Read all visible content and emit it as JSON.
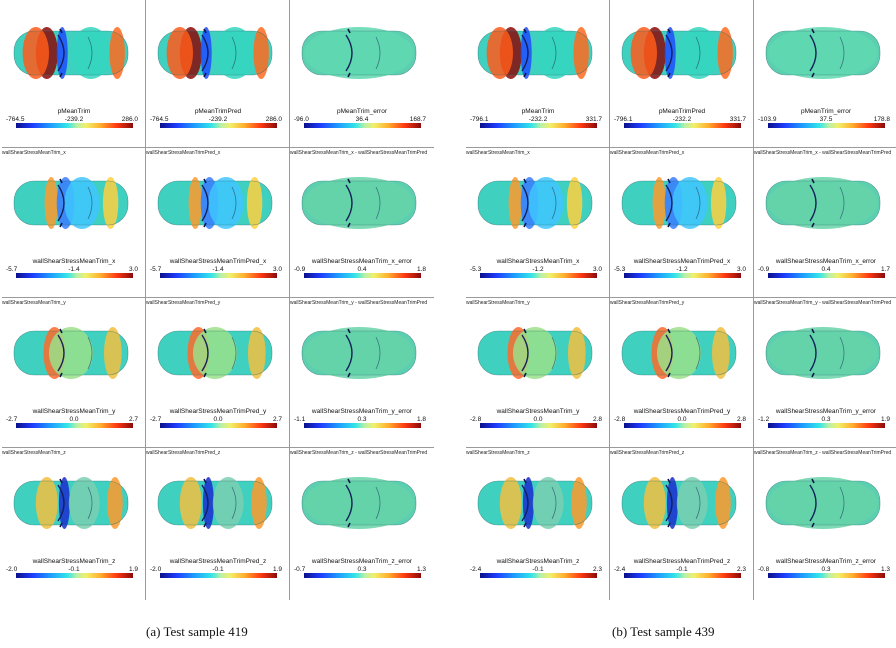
{
  "captions": [
    "(a) Test sample 419",
    "(b) Test sample 439"
  ],
  "colormap": [
    "#0a0f8a",
    "#1f3cff",
    "#1ea0ff",
    "#34e6e6",
    "#b8f0a8",
    "#f2f06a",
    "#ffb02e",
    "#ff3a12",
    "#8a0a0a"
  ],
  "panels": [
    {
      "rows": [
        {
          "fields": [
            "",
            "",
            ""
          ],
          "bars": [
            {
              "title": "pMeanTrim",
              "min": "-764.5",
              "mid": "-239.2",
              "max": "286.0"
            },
            {
              "title": "pMeanTrimPred",
              "min": "-764.5",
              "mid": "-239.2",
              "max": "286.0"
            },
            {
              "title": "pMeanTrim_error",
              "min": "-96.0",
              "mid": "36.4",
              "max": "168.7"
            }
          ]
        },
        {
          "fields": [
            "wallShearStressMeanTrim_x",
            "wallShearStressMeanTrimPred_x",
            "wallShearStressMeanTrim_x - wallShearStressMeanTrimPred"
          ],
          "bars": [
            {
              "title": "wallShearStressMeanTrim_x",
              "min": "-5.7",
              "mid": "-1.4",
              "max": "3.0"
            },
            {
              "title": "wallShearStressMeanTrimPred_x",
              "min": "-5.7",
              "mid": "-1.4",
              "max": "3.0"
            },
            {
              "title": "wallShearStressMeanTrim_x_error",
              "min": "-0.9",
              "mid": "0.4",
              "max": "1.8"
            }
          ]
        },
        {
          "fields": [
            "wallShearStressMeanTrim_y",
            "wallShearStressMeanTrimPred_y",
            "wallShearStressMeanTrim_y - wallShearStressMeanTrimPred"
          ],
          "bars": [
            {
              "title": "wallShearStressMeanTrim_y",
              "min": "-2.7",
              "mid": "0.0",
              "max": "2.7"
            },
            {
              "title": "wallShearStressMeanTrimPred_y",
              "min": "-2.7",
              "mid": "0.0",
              "max": "2.7"
            },
            {
              "title": "wallShearStressMeanTrim_y_error",
              "min": "-1.1",
              "mid": "0.3",
              "max": "1.8"
            }
          ]
        },
        {
          "fields": [
            "wallShearStressMeanTrim_z",
            "wallShearStressMeanTrimPred_z",
            "wallShearStressMeanTrim_z - wallShearStressMeanTrimPred"
          ],
          "bars": [
            {
              "title": "wallShearStressMeanTrim_z",
              "min": "-2.0",
              "mid": "-0.1",
              "max": "1.9"
            },
            {
              "title": "wallShearStressMeanTrimPred_z",
              "min": "-2.0",
              "mid": "-0.1",
              "max": "1.9"
            },
            {
              "title": "wallShearStressMeanTrim_z_error",
              "min": "-0.7",
              "mid": "0.3",
              "max": "1.3"
            }
          ]
        }
      ]
    },
    {
      "rows": [
        {
          "fields": [
            "",
            "",
            ""
          ],
          "bars": [
            {
              "title": "pMeanTrim",
              "min": "-796.1",
              "mid": "-232.2",
              "max": "331.7"
            },
            {
              "title": "pMeanTrimPred",
              "min": "-796.1",
              "mid": "-232.2",
              "max": "331.7"
            },
            {
              "title": "pMeanTrim_error",
              "min": "-103.9",
              "mid": "37.5",
              "max": "178.8"
            }
          ]
        },
        {
          "fields": [
            "wallShearStressMeanTrim_x",
            "wallShearStressMeanTrimPred_x",
            "wallShearStressMeanTrim_x - wallShearStressMeanTrimPred"
          ],
          "bars": [
            {
              "title": "wallShearStressMeanTrim_x",
              "min": "-5.3",
              "mid": "-1.2",
              "max": "3.0"
            },
            {
              "title": "wallShearStressMeanTrimPred_x",
              "min": "-5.3",
              "mid": "-1.2",
              "max": "3.0"
            },
            {
              "title": "wallShearStressMeanTrim_x_error",
              "min": "-0.9",
              "mid": "0.4",
              "max": "1.7"
            }
          ]
        },
        {
          "fields": [
            "wallShearStressMeanTrim_y",
            "wallShearStressMeanTrimPred_y",
            "wallShearStressMeanTrim_y - wallShearStressMeanTrimPred"
          ],
          "bars": [
            {
              "title": "wallShearStressMeanTrim_y",
              "min": "-2.8",
              "mid": "0.0",
              "max": "2.8"
            },
            {
              "title": "wallShearStressMeanTrimPred_y",
              "min": "-2.8",
              "mid": "0.0",
              "max": "2.8"
            },
            {
              "title": "wallShearStressMeanTrim_y_error",
              "min": "-1.2",
              "mid": "0.3",
              "max": "1.9"
            }
          ]
        },
        {
          "fields": [
            "wallShearStressMeanTrim_z",
            "wallShearStressMeanTrimPred_z",
            "wallShearStressMeanTrim_z - wallShearStressMeanTrimPred"
          ],
          "bars": [
            {
              "title": "wallShearStressMeanTrim_z",
              "min": "-2.4",
              "mid": "-0.1",
              "max": "2.3"
            },
            {
              "title": "wallShearStressMeanTrimPred_z",
              "min": "-2.4",
              "mid": "-0.1",
              "max": "2.3"
            },
            {
              "title": "wallShearStressMeanTrim_z_error",
              "min": "-0.8",
              "mid": "0.3",
              "max": "1.3"
            }
          ]
        }
      ]
    }
  ]
}
